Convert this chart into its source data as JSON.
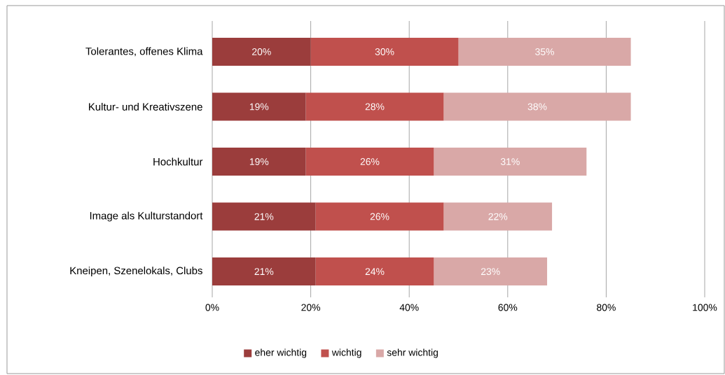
{
  "chart_data": {
    "type": "bar",
    "orientation": "horizontal",
    "stacked": true,
    "categories": [
      "Tolerantes, offenes Klima",
      "Kultur- und Kreativszene",
      "Hochkultur",
      "Image als Kulturstandort",
      "Kneipen, Szenelokals, Clubs"
    ],
    "series": [
      {
        "name": "eher wichtig",
        "color": "#9b3d3c",
        "values": [
          20,
          19,
          19,
          21,
          21
        ],
        "value_labels": [
          "20%",
          "19%",
          "19%",
          "21%",
          "21%"
        ]
      },
      {
        "name": "wichtig",
        "color": "#c0504d",
        "values": [
          30,
          28,
          26,
          26,
          24
        ],
        "value_labels": [
          "30%",
          "28%",
          "26%",
          "26%",
          "24%"
        ]
      },
      {
        "name": "sehr wichtig",
        "color": "#d9a8a7",
        "values": [
          35,
          38,
          31,
          22,
          23
        ],
        "value_labels": [
          "35%",
          "38%",
          "31%",
          "22%",
          "23%"
        ]
      }
    ],
    "xlim": [
      0,
      100
    ],
    "xticks": [
      {
        "value": 0,
        "label": "0%"
      },
      {
        "value": 20,
        "label": "20%"
      },
      {
        "value": 40,
        "label": "40%"
      },
      {
        "value": 60,
        "label": "60%"
      },
      {
        "value": 80,
        "label": "80%"
      },
      {
        "value": 100,
        "label": "100%"
      }
    ],
    "grid": "x",
    "legend": "bottom"
  }
}
